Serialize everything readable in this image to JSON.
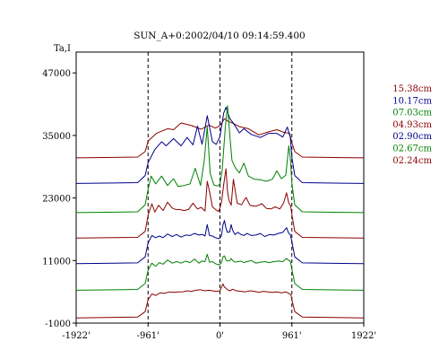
{
  "chart_data": {
    "type": "line",
    "title": "SUN_A+0:2002/04/10 09:14:59.400",
    "ylabel": "Ta,I",
    "x_ticks": [
      "-1922'",
      "-961'",
      "0'",
      "961'",
      "1922'"
    ],
    "x_tick_values": [
      -1922,
      -961,
      0,
      961,
      1922
    ],
    "y_ticks": [
      "47000",
      "35000",
      "23000",
      "11000",
      "-1000"
    ],
    "y_tick_values": [
      47000,
      35000,
      23000,
      11000,
      -1000
    ],
    "xlim": [
      -1922,
      1922
    ],
    "ylim": [
      -1000,
      51000
    ],
    "reference_lines_x": [
      -961,
      0,
      961
    ],
    "legend_position": "right",
    "series": [
      {
        "name": "15.38cm",
        "color": "#8b0000",
        "offset": 30700,
        "x": [
          -1922,
          -1100,
          -1000,
          -961,
          -850,
          -700,
          -620,
          -520,
          -380,
          -250,
          -150,
          -60,
          0,
          60,
          110,
          180,
          260,
          380,
          520,
          650,
          760,
          850,
          930,
          961,
          1000,
          1100,
          1922
        ],
        "y": [
          0,
          150,
          1200,
          3200,
          4700,
          5600,
          5400,
          6700,
          6200,
          5500,
          6300,
          5700,
          6200,
          7500,
          7000,
          6600,
          6000,
          5600,
          4400,
          5000,
          5400,
          4900,
          4700,
          2900,
          1200,
          150,
          0
        ]
      },
      {
        "name": "10.17cm",
        "color": "#00008b",
        "offset": 25800,
        "x": [
          -1922,
          -1100,
          -1000,
          -961,
          -870,
          -780,
          -720,
          -620,
          -520,
          -440,
          -360,
          -300,
          -240,
          -170,
          -100,
          -50,
          0,
          50,
          80,
          130,
          190,
          260,
          320,
          420,
          540,
          650,
          760,
          840,
          900,
          940,
          961,
          1000,
          1100,
          1922
        ],
        "y": [
          0,
          150,
          1500,
          4000,
          6500,
          8000,
          7200,
          8600,
          7200,
          8800,
          7400,
          11000,
          7500,
          13000,
          8000,
          7500,
          9000,
          13500,
          14600,
          12500,
          11300,
          9700,
          10500,
          9400,
          8800,
          9600,
          9600,
          8900,
          10800,
          8800,
          5000,
          1500,
          150,
          0
        ]
      },
      {
        "name": "07.03cm",
        "color": "#008000",
        "offset": 20200,
        "x": [
          -1922,
          -1100,
          -1000,
          -961,
          -920,
          -860,
          -780,
          -700,
          -620,
          -560,
          -480,
          -400,
          -330,
          -260,
          -210,
          -170,
          -130,
          -80,
          -30,
          0,
          30,
          70,
          100,
          130,
          160,
          210,
          260,
          320,
          380,
          460,
          540,
          620,
          700,
          760,
          820,
          880,
          920,
          940,
          961,
          1000,
          1100,
          1922
        ],
        "y": [
          0,
          150,
          1500,
          4500,
          7000,
          5500,
          7000,
          5200,
          6500,
          5000,
          5200,
          5500,
          8500,
          5200,
          10000,
          16500,
          7500,
          5300,
          5100,
          5500,
          8200,
          16000,
          20500,
          15000,
          10000,
          8500,
          7600,
          9500,
          7000,
          6400,
          6300,
          6000,
          6400,
          8000,
          6500,
          7200,
          12800,
          10500,
          5500,
          1500,
          150,
          0
        ]
      },
      {
        "name": "04.93cm",
        "color": "#8b0000",
        "offset": 15300,
        "x": [
          -1922,
          -1100,
          -1000,
          -961,
          -910,
          -870,
          -820,
          -760,
          -700,
          -640,
          -590,
          -540,
          -480,
          -420,
          -360,
          -300,
          -250,
          -200,
          -170,
          -140,
          -100,
          -60,
          -20,
          0,
          20,
          50,
          80,
          100,
          120,
          150,
          180,
          230,
          290,
          320,
          350,
          400,
          480,
          560,
          620,
          680,
          740,
          800,
          850,
          890,
          920,
          945,
          961,
          1000,
          1100,
          1922
        ],
        "y": [
          0,
          150,
          1300,
          4400,
          6600,
          5000,
          6300,
          5300,
          6900,
          5800,
          5500,
          5500,
          5300,
          5500,
          6700,
          5600,
          5900,
          5200,
          10900,
          9000,
          6000,
          5500,
          5100,
          5800,
          6900,
          10300,
          13300,
          9000,
          7300,
          6300,
          11300,
          6700,
          6400,
          7200,
          7800,
          6300,
          6100,
          6600,
          5700,
          5600,
          6000,
          5600,
          6700,
          8700,
          6700,
          6200,
          4500,
          1300,
          150,
          0
        ]
      },
      {
        "name": "02.90cm",
        "color": "#00008b",
        "offset": 10400,
        "x": [
          -1922,
          -1100,
          -1000,
          -961,
          -910,
          -860,
          -810,
          -760,
          -700,
          -640,
          -580,
          -520,
          -460,
          -400,
          -340,
          -280,
          -230,
          -200,
          -170,
          -140,
          -100,
          -60,
          -20,
          0,
          20,
          40,
          60,
          80,
          100,
          130,
          150,
          170,
          200,
          240,
          280,
          320,
          360,
          420,
          480,
          540,
          600,
          660,
          720,
          780,
          840,
          890,
          920,
          940,
          961,
          1000,
          1100,
          1922
        ],
        "y": [
          0,
          150,
          1300,
          4000,
          5400,
          5000,
          5300,
          5000,
          5700,
          5200,
          5600,
          5100,
          5500,
          5400,
          5800,
          5500,
          5600,
          5300,
          7500,
          5400,
          5300,
          5000,
          4800,
          4900,
          5400,
          7400,
          8300,
          6800,
          6000,
          6100,
          7500,
          6400,
          5600,
          6000,
          5600,
          5400,
          5800,
          5400,
          5500,
          5800,
          5200,
          5600,
          5500,
          5800,
          6000,
          6900,
          5800,
          5600,
          4200,
          1300,
          150,
          0
        ]
      },
      {
        "name": "02.67cm",
        "color": "#008000",
        "offset": 5300,
        "x": [
          -1922,
          -1100,
          -1000,
          -961,
          -910,
          -860,
          -810,
          -760,
          -700,
          -640,
          -580,
          -520,
          -460,
          -400,
          -340,
          -280,
          -240,
          -200,
          -170,
          -140,
          -100,
          -60,
          -20,
          0,
          20,
          40,
          60,
          80,
          100,
          130,
          150,
          170,
          200,
          240,
          280,
          320,
          360,
          420,
          480,
          540,
          600,
          660,
          720,
          780,
          840,
          890,
          920,
          940,
          961,
          1000,
          1100,
          1922
        ],
        "y": [
          0,
          150,
          1300,
          3900,
          5200,
          4600,
          5300,
          5000,
          5800,
          5200,
          5500,
          5200,
          5600,
          5300,
          6000,
          5200,
          5600,
          5500,
          6900,
          5400,
          5500,
          5100,
          4900,
          5000,
          5300,
          6400,
          6600,
          5800,
          5600,
          5700,
          6100,
          5700,
          5400,
          5500,
          5600,
          5300,
          5500,
          5700,
          5200,
          5400,
          5500,
          5300,
          5500,
          5600,
          5500,
          6100,
          5700,
          5600,
          4000,
          1300,
          150,
          0
        ]
      },
      {
        "name": "02.24cm",
        "color": "#8b0000",
        "offset": 0,
        "x": [
          -1922,
          -1100,
          -1000,
          -961,
          -910,
          -860,
          -800,
          -740,
          -680,
          -620,
          -560,
          -500,
          -440,
          -380,
          -320,
          -260,
          -200,
          -150,
          -100,
          -50,
          0,
          20,
          40,
          60,
          80,
          100,
          130,
          170,
          220,
          280,
          340,
          400,
          460,
          520,
          580,
          640,
          700,
          760,
          820,
          880,
          920,
          950,
          961,
          1000,
          1100,
          1922
        ],
        "y": [
          0,
          150,
          1200,
          3500,
          4600,
          4300,
          4800,
          4700,
          5000,
          4900,
          5000,
          5000,
          5200,
          5100,
          5300,
          5400,
          5200,
          5300,
          5200,
          5100,
          5200,
          5900,
          6500,
          5900,
          5700,
          5400,
          5200,
          5500,
          5200,
          5100,
          5000,
          5200,
          5100,
          4900,
          5100,
          5000,
          4900,
          5000,
          4800,
          5000,
          4700,
          4400,
          3400,
          1200,
          150,
          0
        ]
      }
    ]
  }
}
